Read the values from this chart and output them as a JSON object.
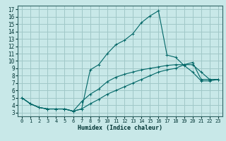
{
  "xlabel": "Humidex (Indice chaleur)",
  "bg_color": "#c8e8e8",
  "grid_color": "#a0c8c8",
  "line_color": "#006666",
  "xlim": [
    -0.5,
    23.5
  ],
  "ylim": [
    2.5,
    17.5
  ],
  "xticks": [
    0,
    1,
    2,
    3,
    4,
    5,
    6,
    7,
    8,
    9,
    10,
    11,
    12,
    13,
    14,
    15,
    16,
    17,
    18,
    19,
    20,
    21,
    22,
    23
  ],
  "yticks": [
    3,
    4,
    5,
    6,
    7,
    8,
    9,
    10,
    11,
    12,
    13,
    14,
    15,
    16,
    17
  ],
  "line1_x": [
    0,
    1,
    2,
    3,
    4,
    5,
    6,
    7,
    8,
    9,
    10,
    11,
    12,
    13,
    14,
    15,
    16,
    17,
    18,
    19,
    20,
    21,
    22,
    23
  ],
  "line1_y": [
    5.0,
    4.2,
    3.7,
    3.5,
    3.5,
    3.5,
    3.2,
    3.5,
    8.8,
    9.5,
    11.0,
    12.2,
    12.8,
    13.7,
    15.2,
    16.1,
    16.8,
    10.8,
    10.5,
    9.4,
    8.5,
    7.3,
    7.3,
    7.5
  ],
  "line2_x": [
    0,
    1,
    2,
    3,
    4,
    5,
    6,
    7,
    8,
    9,
    10,
    11,
    12,
    13,
    14,
    15,
    16,
    17,
    18,
    19,
    20,
    21,
    22,
    23
  ],
  "line2_y": [
    5.0,
    4.2,
    3.7,
    3.5,
    3.5,
    3.5,
    3.2,
    4.5,
    5.5,
    6.2,
    7.2,
    7.8,
    8.2,
    8.5,
    8.8,
    9.0,
    9.2,
    9.4,
    9.5,
    9.5,
    9.5,
    8.5,
    7.5,
    7.5
  ],
  "line3_x": [
    0,
    1,
    2,
    3,
    4,
    5,
    6,
    7,
    8,
    9,
    10,
    11,
    12,
    13,
    14,
    15,
    16,
    17,
    18,
    19,
    20,
    21,
    22,
    23
  ],
  "line3_y": [
    5.0,
    4.2,
    3.7,
    3.5,
    3.5,
    3.5,
    3.2,
    3.5,
    4.2,
    4.8,
    5.5,
    6.0,
    6.5,
    7.0,
    7.5,
    8.0,
    8.5,
    8.8,
    9.0,
    9.5,
    9.8,
    7.5,
    7.5,
    7.5
  ]
}
